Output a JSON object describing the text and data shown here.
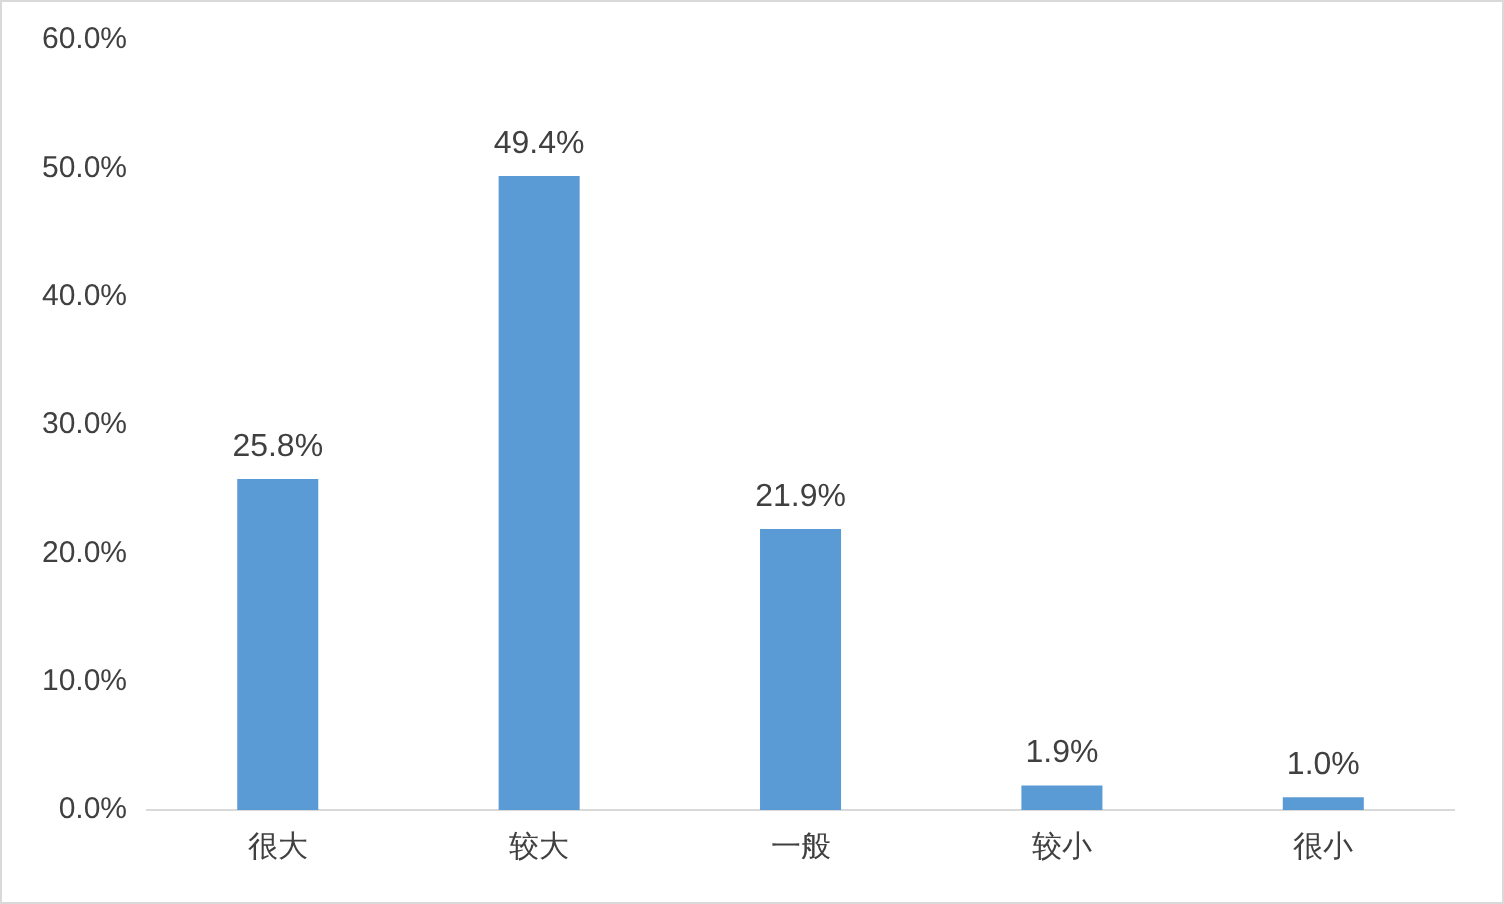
{
  "chart_data": {
    "type": "bar",
    "categories": [
      "很大",
      "较大",
      "一般",
      "较小",
      "很小"
    ],
    "values": [
      25.8,
      49.4,
      21.9,
      1.9,
      1.0
    ],
    "value_labels": [
      "25.8%",
      "49.4%",
      "21.9%",
      "1.9%",
      "1.0%"
    ],
    "color": "#5b9bd5",
    "ylim": [
      0,
      60
    ],
    "yticks": [
      {
        "value": 0,
        "label": "0.0%"
      },
      {
        "value": 10,
        "label": "10.0%"
      },
      {
        "value": 20,
        "label": "20.0%"
      },
      {
        "value": 30,
        "label": "30.0%"
      },
      {
        "value": 40,
        "label": "40.0%"
      },
      {
        "value": 50,
        "label": "50.0%"
      },
      {
        "value": 60,
        "label": "60.0%"
      }
    ],
    "grid": false,
    "legend": false
  }
}
